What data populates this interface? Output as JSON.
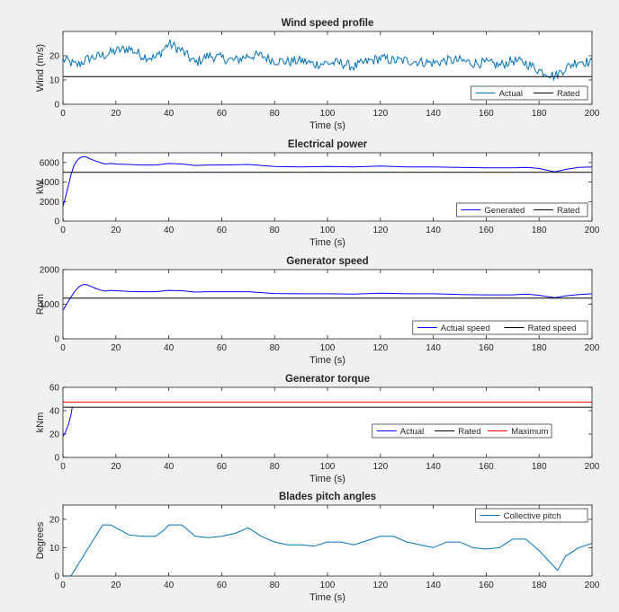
{
  "chart_data": [
    {
      "type": "line",
      "title": "Wind speed profile",
      "xlabel": "Time (s)",
      "ylabel": "Wind (m/s)",
      "xlim": [
        0,
        200
      ],
      "ylim": [
        0,
        30
      ],
      "xticks": [
        0,
        20,
        40,
        60,
        80,
        100,
        120,
        140,
        160,
        180,
        200
      ],
      "yticks": [
        0,
        10,
        20
      ],
      "legend_location": "bottom-right",
      "series": [
        {
          "name": "Actual",
          "color": "#0072bd",
          "noisy": true,
          "x": [
            0,
            5,
            10,
            15,
            20,
            25,
            30,
            35,
            40,
            45,
            50,
            55,
            60,
            65,
            70,
            75,
            80,
            85,
            90,
            95,
            100,
            105,
            110,
            115,
            120,
            125,
            130,
            135,
            140,
            145,
            150,
            155,
            160,
            165,
            170,
            175,
            180,
            183,
            186,
            190,
            195,
            200
          ],
          "y": [
            18.5,
            16,
            19,
            20,
            22,
            23,
            20,
            19,
            25,
            22,
            17,
            20,
            19,
            18,
            20,
            20,
            18,
            17.5,
            18,
            16.5,
            17,
            17,
            15.5,
            17.5,
            19,
            18,
            18,
            17.5,
            17,
            18,
            18,
            17,
            17,
            16,
            18,
            17,
            14,
            13,
            11.5,
            15,
            18,
            17
          ]
        },
        {
          "name": "Rated",
          "color": "#000000",
          "x": [
            0,
            200
          ],
          "y": [
            11.4,
            11.4
          ]
        }
      ]
    },
    {
      "type": "line",
      "title": "Electrical power",
      "xlabel": "Time (s)",
      "ylabel": "kW",
      "xlim": [
        0,
        200
      ],
      "ylim": [
        0,
        7000
      ],
      "xticks": [
        0,
        20,
        40,
        60,
        80,
        100,
        120,
        140,
        160,
        180,
        200
      ],
      "yticks": [
        0,
        2000,
        4000,
        6000
      ],
      "legend_location": "bottom-right",
      "series": [
        {
          "name": "Generated",
          "color": "#0000ff",
          "x": [
            0,
            1,
            2,
            3,
            4,
            5,
            6,
            7,
            8,
            9,
            10,
            12,
            14,
            16,
            18,
            20,
            25,
            30,
            35,
            40,
            45,
            50,
            55,
            60,
            70,
            80,
            90,
            100,
            110,
            120,
            130,
            140,
            150,
            160,
            170,
            175,
            180,
            183,
            186,
            190,
            195,
            200
          ],
          "y": [
            1500,
            2500,
            3600,
            4700,
            5600,
            6100,
            6400,
            6550,
            6600,
            6550,
            6400,
            6200,
            6000,
            5850,
            5900,
            5850,
            5800,
            5750,
            5750,
            5900,
            5850,
            5700,
            5750,
            5750,
            5800,
            5600,
            5550,
            5600,
            5550,
            5650,
            5550,
            5550,
            5500,
            5450,
            5450,
            5500,
            5400,
            5200,
            5050,
            5300,
            5500,
            5550
          ]
        },
        {
          "name": "Rated",
          "color": "#000000",
          "x": [
            0,
            200
          ],
          "y": [
            5000,
            5000
          ]
        }
      ]
    },
    {
      "type": "line",
      "title": "Generator speed",
      "xlabel": "Time (s)",
      "ylabel": "Rpm",
      "xlim": [
        0,
        200
      ],
      "ylim": [
        0,
        2000
      ],
      "xticks": [
        0,
        20,
        40,
        60,
        80,
        100,
        120,
        140,
        160,
        180,
        200
      ],
      "yticks": [
        0,
        1000,
        2000
      ],
      "legend_location": "bottom-right",
      "series": [
        {
          "name": "Actual speed",
          "color": "#0000ff",
          "x": [
            0,
            1,
            2,
            3,
            4,
            5,
            6,
            7,
            8,
            9,
            10,
            12,
            14,
            16,
            18,
            20,
            25,
            30,
            35,
            40,
            45,
            50,
            55,
            60,
            70,
            80,
            90,
            100,
            110,
            120,
            130,
            140,
            150,
            160,
            170,
            175,
            180,
            183,
            186,
            190,
            195,
            200
          ],
          "y": [
            820,
            950,
            1080,
            1200,
            1320,
            1420,
            1500,
            1550,
            1570,
            1560,
            1530,
            1470,
            1410,
            1380,
            1400,
            1390,
            1370,
            1360,
            1360,
            1400,
            1390,
            1350,
            1360,
            1360,
            1360,
            1310,
            1300,
            1300,
            1290,
            1320,
            1300,
            1300,
            1280,
            1270,
            1270,
            1290,
            1260,
            1220,
            1190,
            1240,
            1280,
            1300
          ]
        },
        {
          "name": "Rated speed",
          "color": "#000000",
          "x": [
            0,
            200
          ],
          "y": [
            1173.7,
            1173.7
          ]
        }
      ]
    },
    {
      "type": "line",
      "title": "Generator torque",
      "xlabel": "Time (s)",
      "ylabel": "kNm",
      "xlim": [
        0,
        200
      ],
      "ylim": [
        0,
        60
      ],
      "xticks": [
        0,
        20,
        40,
        60,
        80,
        100,
        120,
        140,
        160,
        180,
        200
      ],
      "yticks": [
        0,
        20,
        40,
        60
      ],
      "legend_location": "middle-right",
      "series": [
        {
          "name": "Actual",
          "color": "#0000ff",
          "x": [
            0,
            1,
            2,
            3,
            3.5
          ],
          "y": [
            18,
            22,
            28,
            36,
            43
          ]
        },
        {
          "name": "Rated",
          "color": "#000000",
          "x": [
            0,
            200
          ],
          "y": [
            43,
            43
          ]
        },
        {
          "name": "Maximum",
          "color": "#ff0000",
          "x": [
            0,
            200
          ],
          "y": [
            47.4,
            47.4
          ]
        }
      ]
    },
    {
      "type": "line",
      "title": "Blades pitch angles",
      "xlabel": "Time (s)",
      "ylabel": "Degrees",
      "xlim": [
        0,
        200
      ],
      "ylim": [
        0,
        25
      ],
      "xticks": [
        0,
        20,
        40,
        60,
        80,
        100,
        120,
        140,
        160,
        180,
        200
      ],
      "yticks": [
        0,
        10,
        20
      ],
      "legend_location": "top-right",
      "series": [
        {
          "name": "Collective pitch",
          "color": "#0072bd",
          "noisy": false,
          "x": [
            0,
            3,
            15,
            18,
            20,
            25,
            30,
            35,
            38,
            40,
            45,
            50,
            55,
            60,
            65,
            70,
            75,
            80,
            85,
            90,
            95,
            100,
            105,
            110,
            115,
            120,
            125,
            130,
            135,
            140,
            145,
            150,
            155,
            160,
            165,
            170,
            175,
            180,
            183,
            187,
            190,
            195,
            200
          ],
          "y": [
            0,
            0,
            18,
            18,
            17,
            14.5,
            14,
            14,
            16,
            18,
            18,
            14,
            13.5,
            14,
            15,
            17,
            14,
            12,
            11,
            11,
            10.5,
            12,
            12,
            11,
            12.5,
            14,
            14,
            12,
            11,
            10,
            12,
            12,
            10,
            9.5,
            10,
            13,
            13,
            9,
            6,
            2,
            7,
            10,
            11.5
          ]
        }
      ]
    }
  ]
}
